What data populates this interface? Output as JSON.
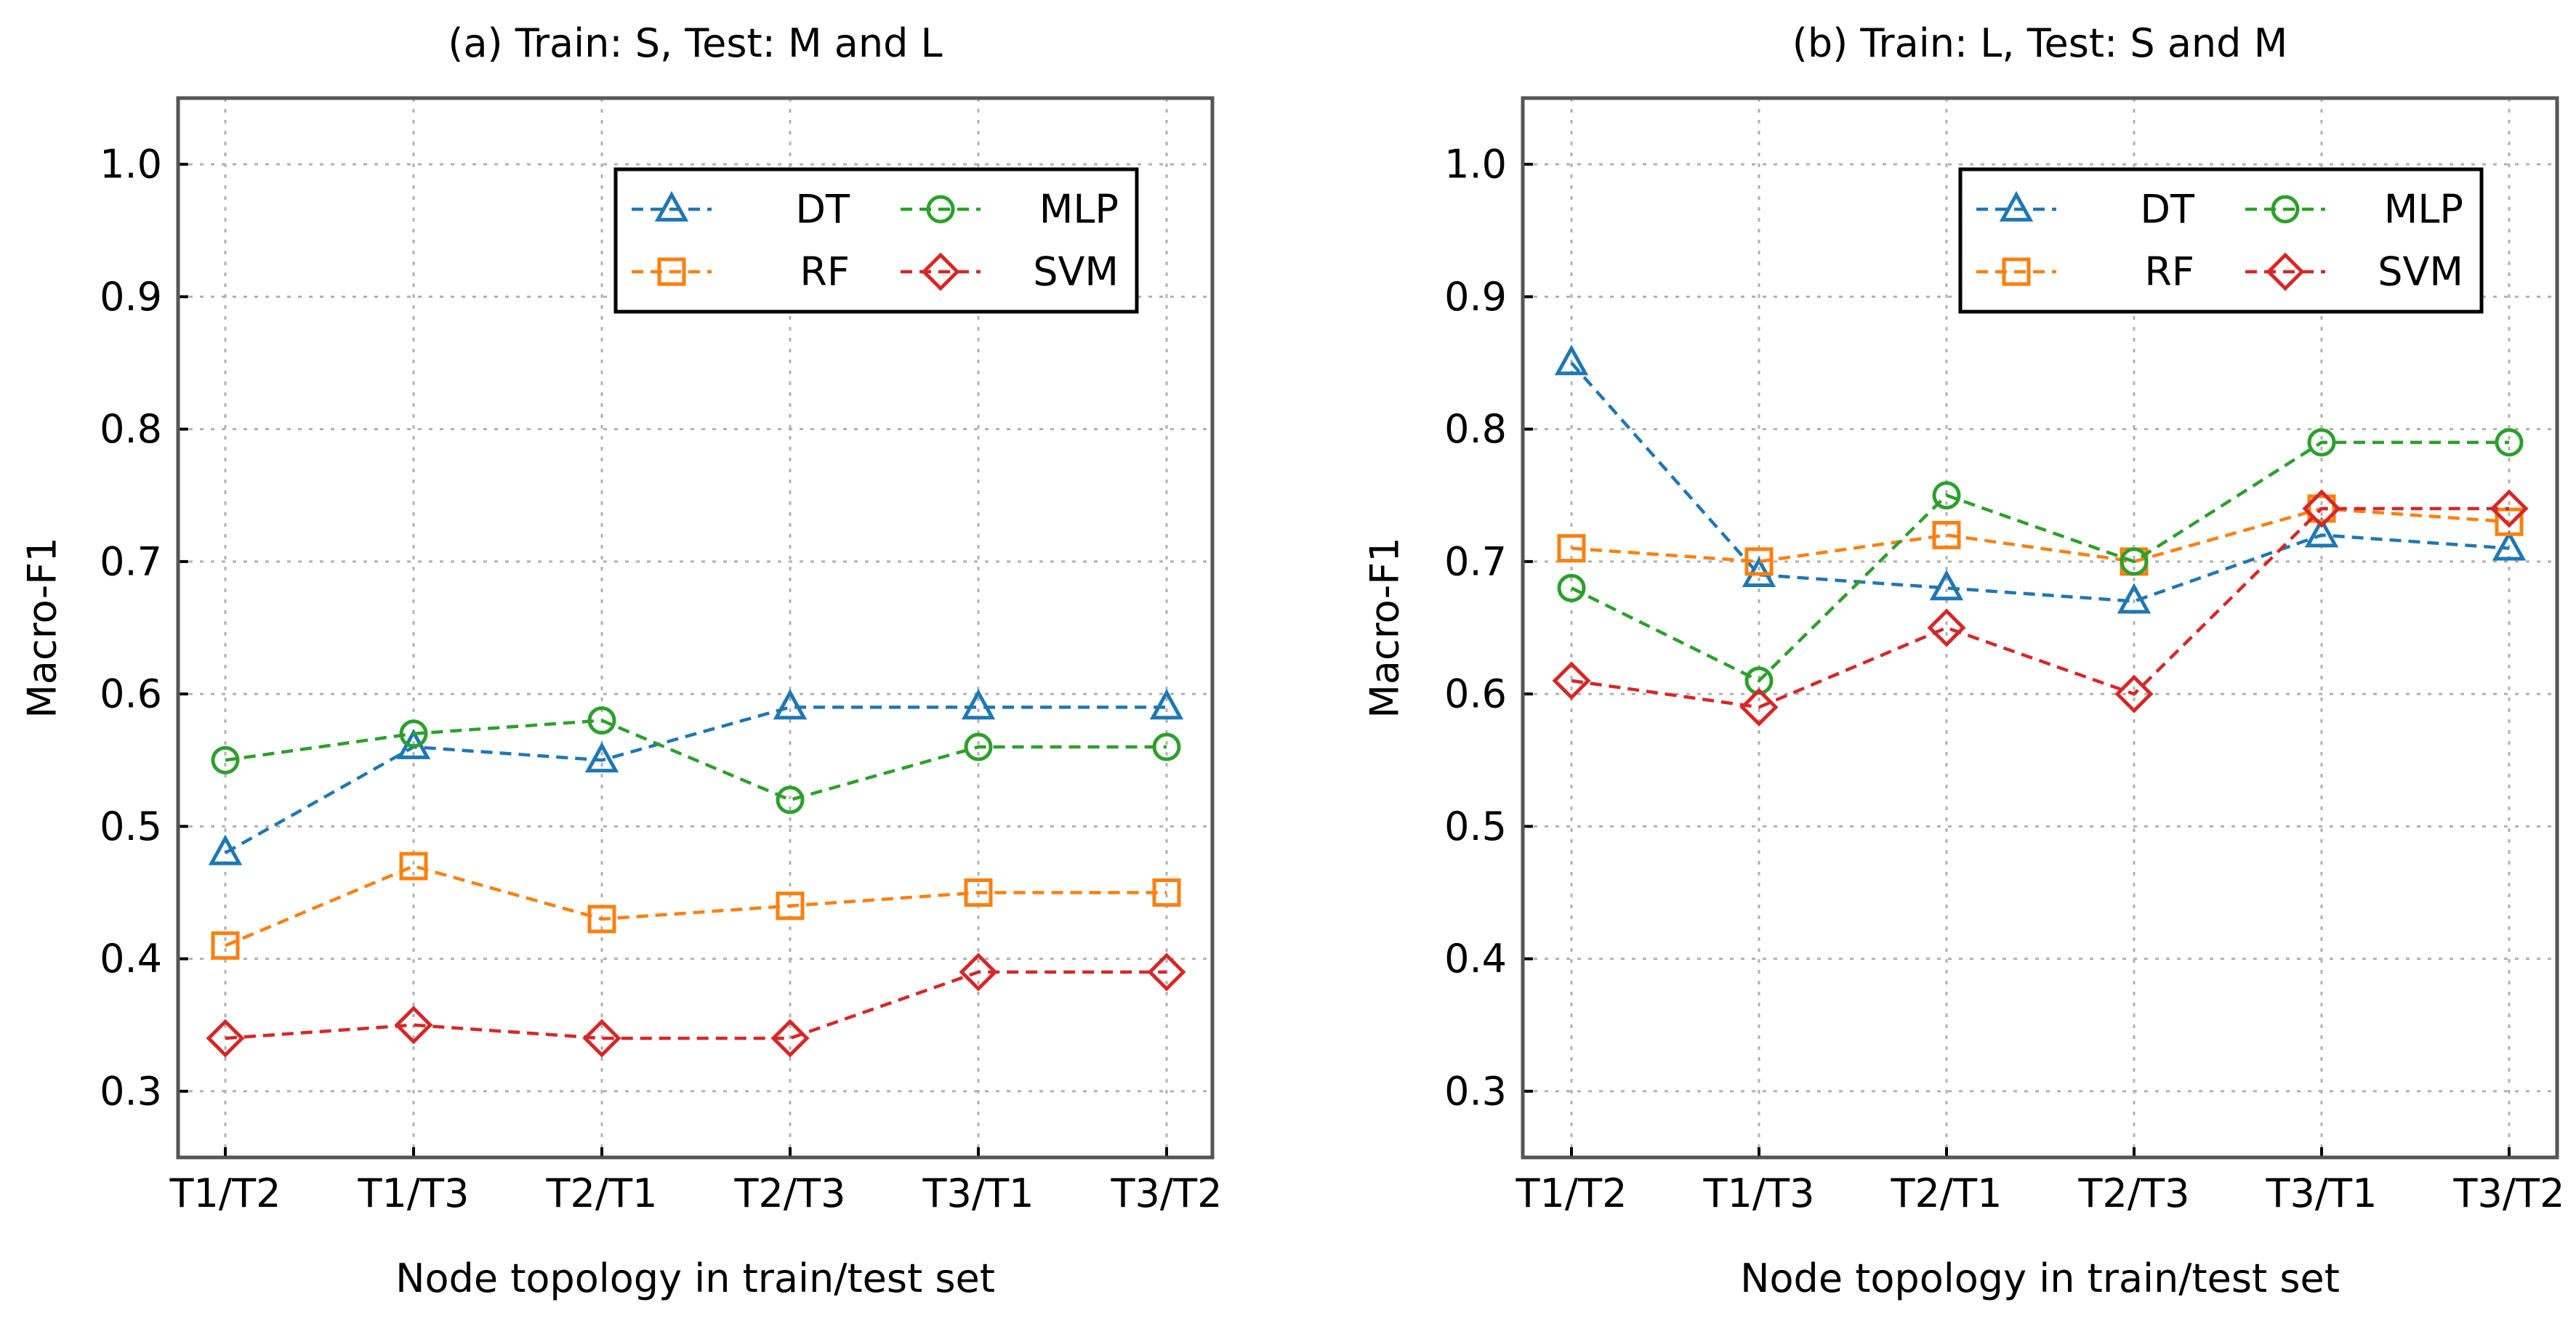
{
  "chart_data": [
    {
      "type": "line",
      "title": "(a) Train: S, Test: M and L",
      "xlabel": "Node topology in train/test set",
      "ylabel": "Macro-F1",
      "categories": [
        "T1/T2",
        "T1/T3",
        "T2/T1",
        "T2/T3",
        "T3/T1",
        "T3/T2"
      ],
      "ylim": [
        0.25,
        1.05
      ],
      "yticks": [
        "0.3",
        "0.4",
        "0.5",
        "0.6",
        "0.7",
        "0.8",
        "0.9",
        "1.0"
      ],
      "grid": true,
      "legend_position": "upper-right",
      "series": [
        {
          "name": "DT",
          "color": "#1f77b4",
          "marker": "triangle",
          "values": [
            0.48,
            0.56,
            0.55,
            0.59,
            0.59,
            0.59
          ]
        },
        {
          "name": "RF",
          "color": "#ff7f0e",
          "marker": "square",
          "values": [
            0.41,
            0.47,
            0.43,
            0.44,
            0.45,
            0.45
          ]
        },
        {
          "name": "MLP",
          "color": "#2ca02c",
          "marker": "circle",
          "values": [
            0.55,
            0.57,
            0.58,
            0.52,
            0.56,
            0.56
          ]
        },
        {
          "name": "SVM",
          "color": "#d62728",
          "marker": "diamond",
          "values": [
            0.34,
            0.35,
            0.34,
            0.34,
            0.39,
            0.39
          ]
        }
      ]
    },
    {
      "type": "line",
      "title": "(b) Train: L, Test: S and M",
      "xlabel": "Node topology in train/test set",
      "ylabel": "Macro-F1",
      "categories": [
        "T1/T2",
        "T1/T3",
        "T2/T1",
        "T2/T3",
        "T3/T1",
        "T3/T2"
      ],
      "ylim": [
        0.25,
        1.05
      ],
      "yticks": [
        "0.3",
        "0.4",
        "0.5",
        "0.6",
        "0.7",
        "0.8",
        "0.9",
        "1.0"
      ],
      "grid": true,
      "legend_position": "upper-right",
      "series": [
        {
          "name": "DT",
          "color": "#1f77b4",
          "marker": "triangle",
          "values": [
            0.85,
            0.69,
            0.68,
            0.67,
            0.72,
            0.71
          ]
        },
        {
          "name": "RF",
          "color": "#ff7f0e",
          "marker": "square",
          "values": [
            0.71,
            0.7,
            0.72,
            0.7,
            0.74,
            0.73
          ]
        },
        {
          "name": "MLP",
          "color": "#2ca02c",
          "marker": "circle",
          "values": [
            0.68,
            0.61,
            0.75,
            0.7,
            0.79,
            0.79
          ]
        },
        {
          "name": "SVM",
          "color": "#d62728",
          "marker": "diamond",
          "values": [
            0.61,
            0.59,
            0.65,
            0.6,
            0.74,
            0.74
          ]
        }
      ]
    }
  ]
}
